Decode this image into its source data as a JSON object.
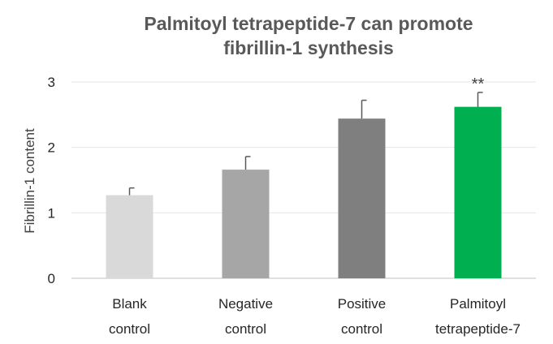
{
  "chart_data": {
    "type": "bar",
    "title_lines": [
      "Palmitoyl tetrapeptide-7 can promote",
      "fibrillin-1 synthesis"
    ],
    "xlabel": "",
    "ylabel": "Fibrillin-1 content",
    "ylim": [
      0,
      3
    ],
    "yticks": [
      "0",
      "1",
      "2",
      "3"
    ],
    "grid": true,
    "legend": "none",
    "categories": [
      "Blank control",
      "Negative control",
      "Positive control",
      "Palmitoyl tetrapeptide-7"
    ],
    "category_lines": [
      [
        "Blank",
        "control"
      ],
      [
        "Negative",
        "control"
      ],
      [
        "Positive",
        "control"
      ],
      [
        "Palmitoyl",
        "tetrapeptide-7"
      ]
    ],
    "values": [
      1.27,
      1.66,
      2.44,
      2.62
    ],
    "errors": [
      0.11,
      0.2,
      0.28,
      0.22
    ],
    "annotations": [
      "",
      "",
      "",
      "**"
    ],
    "colors": [
      "#d9d9d9",
      "#a6a6a6",
      "#7f7f7f",
      "#00b050"
    ]
  }
}
